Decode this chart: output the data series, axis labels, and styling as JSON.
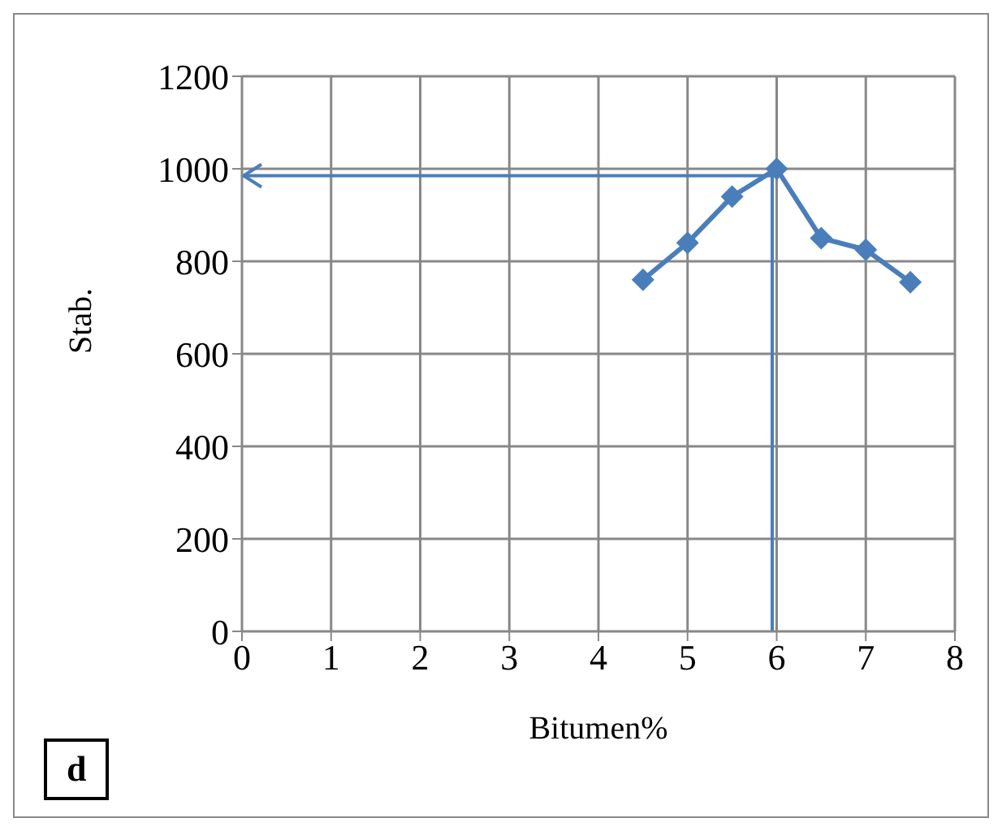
{
  "chart_data": {
    "type": "line",
    "xlabel": "Bitumen%",
    "ylabel": "Stab.",
    "x": [
      4.5,
      5,
      5.5,
      6,
      6.5,
      7,
      7.5
    ],
    "series": [
      {
        "color": "#4a7ebb",
        "values": [
          760,
          840,
          940,
          1000,
          850,
          825,
          755
        ]
      }
    ],
    "xlim": [
      0,
      8
    ],
    "xticks": [
      0,
      1,
      2,
      3,
      4,
      5,
      6,
      7,
      8
    ],
    "ylim": [
      0,
      1200
    ],
    "yticks": [
      0,
      200,
      400,
      600,
      800,
      1000,
      1200
    ],
    "grid": true,
    "legend": false,
    "marker": "diamond",
    "line_style": "solid",
    "ref_lines": [
      {
        "axis": "y",
        "value": 985,
        "color": "#4a7ebb"
      },
      {
        "axis": "x",
        "value": 5.95,
        "color": "#4a7ebb"
      }
    ],
    "annotations": [
      "d"
    ]
  }
}
